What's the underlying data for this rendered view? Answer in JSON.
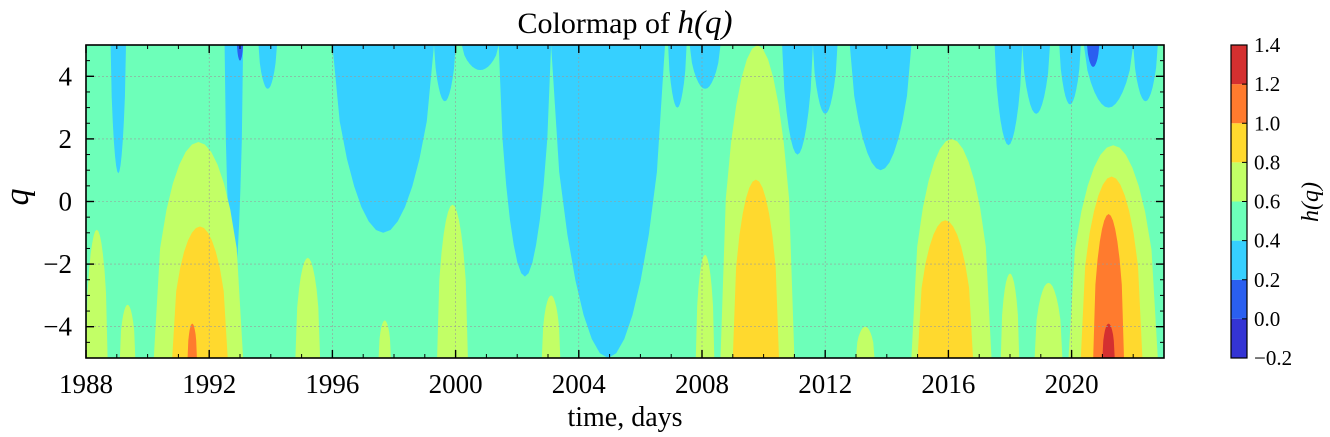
{
  "chart_data": {
    "type": "heatmap",
    "title": "Colormap of h(q)",
    "title_parts": {
      "prefix": "Colormap of ",
      "math": "h(q)"
    },
    "xlabel": "time, days",
    "ylabel": "q",
    "xlim": [
      1988,
      2023.0
    ],
    "ylim": [
      -5,
      5
    ],
    "xticks": [
      1988,
      1992,
      1996,
      2000,
      2004,
      2008,
      2012,
      2016,
      2020
    ],
    "yticks": [
      4,
      2,
      0,
      -2,
      -4
    ],
    "ytick_labels": [
      "4",
      "2",
      "0",
      "−2",
      "−4"
    ],
    "grid": true,
    "colorbar": {
      "label": "h(q)",
      "levels": [
        -0.2,
        0.0,
        0.2,
        0.4,
        0.6,
        0.8,
        1.0,
        1.2,
        1.4
      ],
      "tick_labels": [
        "−0.2",
        "0.0",
        "0.2",
        "0.4",
        "0.6",
        "0.8",
        "1.0",
        "1.2",
        "1.4"
      ],
      "colors": [
        "#3434d4",
        "#2a5ff0",
        "#36d0ff",
        "#6dffb9",
        "#c2ff66",
        "#ffd92e",
        "#ff7b2e",
        "#d43030"
      ]
    },
    "field_description": "h(q) over time (x) and q (y); base level 0.4-0.6 with low regions 0.2-0.4 and high bumps at negative q",
    "low_regions": [
      {
        "x": [
          1988.8,
          1989.3
        ],
        "top": 0.9,
        "level": 0.2
      },
      {
        "x": [
          1992.5,
          1993.1
        ],
        "top": -2.6,
        "level": 0.2
      },
      {
        "x": [
          1993.6,
          1994.2
        ],
        "top": 3.6,
        "level": 0.2
      },
      {
        "x": [
          1996.0,
          1999.3
        ],
        "top": -1.0,
        "level": 0.2
      },
      {
        "x": [
          1999.3,
          2000.0
        ],
        "top": 3.2,
        "level": 0.2
      },
      {
        "x": [
          2000.2,
          2001.4
        ],
        "top": 4.2,
        "level": 0.2
      },
      {
        "x": [
          2001.4,
          2003.1
        ],
        "top": -2.4,
        "level": 0.2
      },
      {
        "x": [
          2003.1,
          2006.8
        ],
        "top": -5.0,
        "level": 0.2
      },
      {
        "x": [
          2006.9,
          2007.5
        ],
        "top": 3.0,
        "level": 0.2
      },
      {
        "x": [
          2007.6,
          2008.6
        ],
        "top": 3.6,
        "level": 0.2
      },
      {
        "x": [
          2010.6,
          2011.6
        ],
        "top": 1.5,
        "level": 0.2
      },
      {
        "x": [
          2011.6,
          2012.4
        ],
        "top": 2.8,
        "level": 0.2
      },
      {
        "x": [
          2012.8,
          2014.8
        ],
        "top": 1.0,
        "level": 0.2
      },
      {
        "x": [
          2017.5,
          2018.4
        ],
        "top": 1.8,
        "level": 0.2
      },
      {
        "x": [
          2018.4,
          2019.3
        ],
        "top": 2.8,
        "level": 0.2
      },
      {
        "x": [
          2019.6,
          2020.3
        ],
        "top": 3.1,
        "level": 0.2
      },
      {
        "x": [
          2020.4,
          2022.0
        ],
        "top": 3.0,
        "level": 0.2
      },
      {
        "x": [
          2022.0,
          2022.8
        ],
        "top": 3.2,
        "level": 0.2
      },
      {
        "x": [
          2020.5,
          2020.9
        ],
        "top": 4.3,
        "level": 0.0
      },
      {
        "x": [
          1992.9,
          1993.1
        ],
        "top": 4.5,
        "level": 0.0
      }
    ],
    "high_regions": [
      {
        "x": [
          1988.0,
          1988.7
        ],
        "top": -0.9,
        "level": 0.6
      },
      {
        "x": [
          1989.1,
          1989.6
        ],
        "top": -3.3,
        "level": 0.6
      },
      {
        "x": [
          1990.2,
          1993.1
        ],
        "top": 1.9,
        "level": 0.6
      },
      {
        "x": [
          1990.8,
          1992.6
        ],
        "top": -0.8,
        "level": 0.8
      },
      {
        "x": [
          1991.3,
          1991.6
        ],
        "top": -3.9,
        "level": 1.0
      },
      {
        "x": [
          1994.8,
          1995.6
        ],
        "top": -1.8,
        "level": 0.6
      },
      {
        "x": [
          1997.5,
          1997.9
        ],
        "top": -3.8,
        "level": 0.6
      },
      {
        "x": [
          1999.4,
          2000.4
        ],
        "top": -0.1,
        "level": 0.6
      },
      {
        "x": [
          2002.8,
          2003.4
        ],
        "top": -3.0,
        "level": 0.6
      },
      {
        "x": [
          2007.8,
          2008.4
        ],
        "top": -1.7,
        "level": 0.6
      },
      {
        "x": [
          2008.6,
          2011.0
        ],
        "top": 5.0,
        "level": 0.6
      },
      {
        "x": [
          2009.0,
          2010.5
        ],
        "top": 0.7,
        "level": 0.8
      },
      {
        "x": [
          2013.0,
          2013.6
        ],
        "top": -4.0,
        "level": 0.6
      },
      {
        "x": [
          2014.8,
          2017.4
        ],
        "top": 2.0,
        "level": 0.6
      },
      {
        "x": [
          2015.0,
          2016.8
        ],
        "top": -0.6,
        "level": 0.8
      },
      {
        "x": [
          2017.7,
          2018.3
        ],
        "top": -2.3,
        "level": 0.6
      },
      {
        "x": [
          2018.8,
          2019.7
        ],
        "top": -2.6,
        "level": 0.6
      },
      {
        "x": [
          2019.9,
          2022.8
        ],
        "top": 1.8,
        "level": 0.6
      },
      {
        "x": [
          2020.3,
          2022.3
        ],
        "top": 0.8,
        "level": 0.8
      },
      {
        "x": [
          2020.7,
          2021.7
        ],
        "top": -0.4,
        "level": 1.0
      },
      {
        "x": [
          2021.0,
          2021.4
        ],
        "top": -3.9,
        "level": 1.2
      }
    ]
  }
}
